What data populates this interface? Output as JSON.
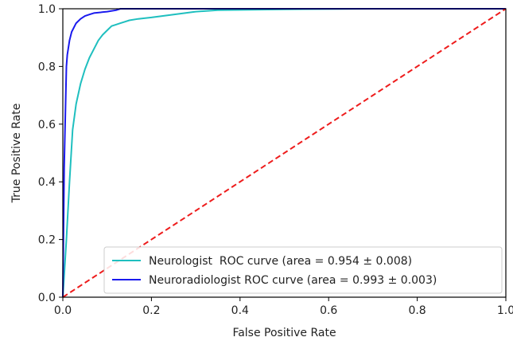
{
  "chart_data": {
    "type": "line",
    "title": "",
    "xlabel": "False Positive Rate",
    "ylabel": "True Positive Rate",
    "xlim": [
      0.0,
      1.0
    ],
    "ylim": [
      0.0,
      1.0
    ],
    "xticks": [
      "0.0",
      "0.2",
      "0.4",
      "0.6",
      "0.8",
      "1.0"
    ],
    "yticks": [
      "0.0",
      "0.2",
      "0.4",
      "0.6",
      "0.8",
      "1.0"
    ],
    "grid": false,
    "legend_position": "lower-right",
    "series": [
      {
        "name": "Neurologist  ROC curve (area = 0.954 ± 0.008)",
        "color": "#1fbfbf",
        "style": "solid",
        "x": [
          0.0,
          0.008,
          0.015,
          0.022,
          0.03,
          0.04,
          0.05,
          0.06,
          0.07,
          0.08,
          0.09,
          0.1,
          0.11,
          0.12,
          0.13,
          0.14,
          0.15,
          0.17,
          0.2,
          0.25,
          0.3,
          0.35,
          0.5,
          0.7,
          1.0
        ],
        "y": [
          0.0,
          0.2,
          0.4,
          0.58,
          0.67,
          0.74,
          0.79,
          0.83,
          0.86,
          0.89,
          0.91,
          0.925,
          0.94,
          0.945,
          0.95,
          0.955,
          0.96,
          0.965,
          0.97,
          0.98,
          0.99,
          0.995,
          0.998,
          1.0,
          1.0
        ]
      },
      {
        "name": "Neuroradiologist ROC curve (area = 0.993 ± 0.003)",
        "color": "#1a1aee",
        "style": "solid",
        "x": [
          0.0,
          0.003,
          0.008,
          0.01,
          0.015,
          0.02,
          0.03,
          0.04,
          0.05,
          0.06,
          0.07,
          0.1,
          0.12,
          0.13,
          0.2,
          0.4,
          1.0
        ],
        "y": [
          0.0,
          0.45,
          0.8,
          0.84,
          0.89,
          0.92,
          0.95,
          0.965,
          0.975,
          0.98,
          0.985,
          0.99,
          0.995,
          1.0,
          1.0,
          1.0,
          1.0
        ]
      },
      {
        "color": "#ee1c1c",
        "style": "dashed",
        "x": [
          0.0,
          1.0
        ],
        "y": [
          0.0,
          1.0
        ]
      }
    ]
  }
}
